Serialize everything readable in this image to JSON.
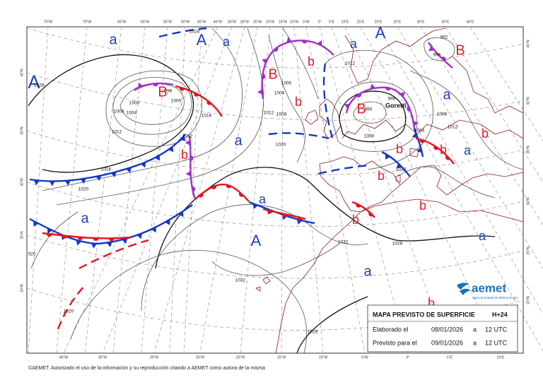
{
  "map": {
    "top_longitudes": [
      "75°W",
      "70°W",
      "65°W",
      "60°W",
      "55°W",
      "50°W",
      "45°W",
      "40°W",
      "35°W",
      "30°W",
      "25°W",
      "20°W",
      "15°W",
      "10°W",
      "5°W",
      "0°",
      "5°E",
      "10°E",
      "15°E",
      "20°E",
      "25°E",
      "30°E",
      "35°E",
      "40°E"
    ],
    "bottom_longitudes": [
      "40°W",
      "35°W",
      "30°W",
      "25°W",
      "20°W",
      "15°W",
      "10°W",
      "5°W",
      "0°",
      "5°E",
      "10°E"
    ],
    "left_latitudes": [
      "40°N",
      "35°N",
      "30°N",
      "25°N",
      "20°N"
    ],
    "right_latitudes": [
      "45°N",
      "40°N",
      "35°N",
      "30°N",
      "25°N",
      "20°N"
    ],
    "pressure_centers": [
      "A",
      "a",
      "A",
      "a",
      "a",
      "a",
      "A",
      "a",
      "A",
      "a",
      "a",
      "a",
      "a",
      "a",
      "B",
      "B",
      "B",
      "B",
      "b",
      "b",
      "b",
      "b",
      "b",
      "b",
      "b",
      "b",
      "b",
      "b"
    ],
    "isobar_labels": [
      "1028",
      "996",
      "1000",
      "1004",
      "1008",
      "1012",
      "1016",
      "1020",
      "1012",
      "1016",
      "1000",
      "1024",
      "1000",
      "1004",
      "1012",
      "1008",
      "1020",
      "1012",
      "1000",
      "996",
      "990",
      "1008",
      "1012",
      "1004",
      "1012",
      "1032",
      "1028",
      "1032",
      "1028",
      "1020",
      "996",
      "992",
      "020"
    ],
    "storm_name": "Goretti"
  },
  "legend": {
    "title": "MAPA PREVISTO DE SUPERFICIE",
    "step": "H+24",
    "rows": [
      [
        "Elaborado el",
        "08/01/2026",
        "a",
        "12 UTC"
      ],
      [
        "Previsto para el",
        "09/01/2026",
        "a",
        "12 UTC"
      ]
    ]
  },
  "logo": {
    "name": "aemet",
    "agency": "Agencia Estatal de Meteorología"
  },
  "footer": "©AEMET. Autorizado el uso de la información y su reproducción citando a AEMET como autora de la misma"
}
